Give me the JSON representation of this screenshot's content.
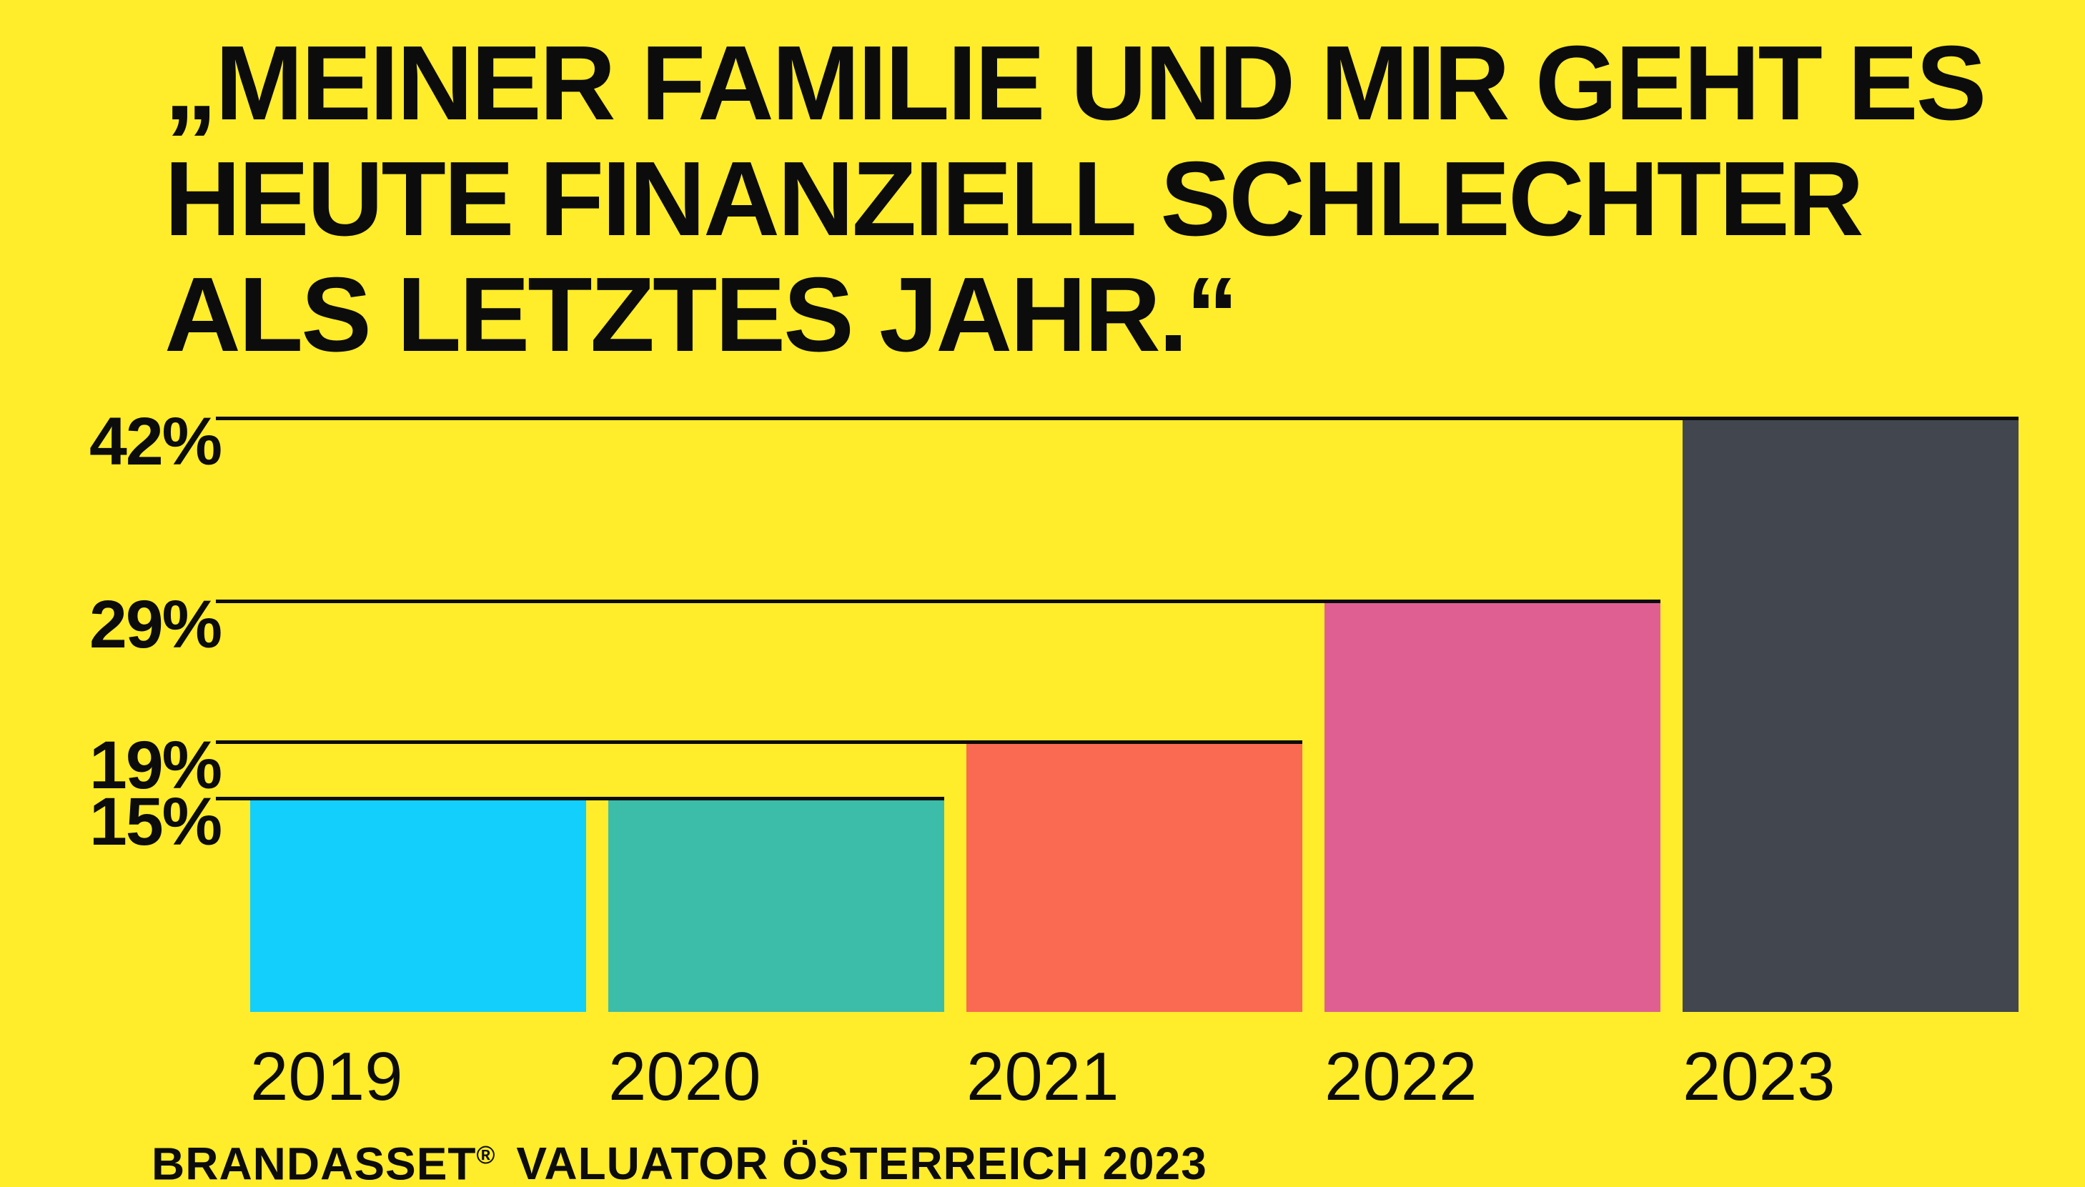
{
  "page": {
    "background_color": "#FFEC2B",
    "text_color": "#0C0C0C"
  },
  "title": {
    "lines": [
      "„MEINER FAMILIE UND MIR GEHT ES",
      "HEUTE FINANZIELL SCHLECHTER",
      "ALS LETZTES JAHR.“"
    ]
  },
  "source": {
    "brand": "BRANDASSET",
    "reg_mark": "®",
    "rest": "VALUATOR ÖSTERREICH 2023"
  },
  "chart_data": {
    "type": "bar",
    "title": "„Meiner Familie und mir geht es heute finanziell schlechter als letztes Jahr.“",
    "categories": [
      "2019",
      "2020",
      "2021",
      "2022",
      "2023"
    ],
    "values": [
      15,
      15,
      19,
      29,
      42
    ],
    "unit": "%",
    "bar_colors": [
      "#12CFFC",
      "#3CBDAA",
      "#FA6952",
      "#E05F93",
      "#42464F"
    ],
    "y_axis_values": [
      42,
      29,
      19,
      15
    ],
    "y_axis_labels": [
      "42%",
      "29%",
      "19%",
      "15%"
    ],
    "ylim": [
      0,
      42
    ],
    "xlabel": "",
    "ylabel": "",
    "grid": "horizontal line at each labeled value, ending at the right edge of the last bar reaching that value",
    "legend": "none",
    "source_label": "BRANDASSET® VALUATOR ÖSTERREICH 2023"
  }
}
